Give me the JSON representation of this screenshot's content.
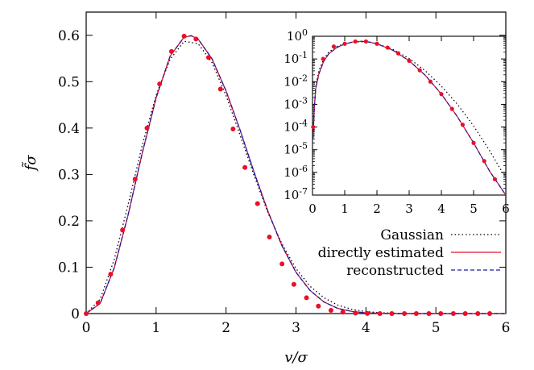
{
  "chart_data": [
    {
      "type": "line",
      "role": "main",
      "xlabel": "v/σ",
      "ylabel": "f̃σ",
      "xlim": [
        0,
        6
      ],
      "ylim": [
        0,
        0.65
      ],
      "xticks": [
        0,
        1,
        2,
        3,
        4,
        5,
        6
      ],
      "yticks": [
        0,
        0.1,
        0.2,
        0.3,
        0.4,
        0.5,
        0.6
      ],
      "x_tick_labels": [
        "0",
        "1",
        "2",
        "3",
        "4",
        "5",
        "6"
      ],
      "y_tick_labels": [
        "0",
        "0.1",
        "0.2",
        "0.3",
        "0.4",
        "0.5",
        "0.6"
      ],
      "series": [
        {
          "name": "Gaussian",
          "color": "#000000",
          "style": "dotted",
          "x": [
            0,
            0.2,
            0.4,
            0.6,
            0.8,
            1.0,
            1.2,
            1.4,
            1.6,
            1.8,
            2.0,
            2.2,
            2.4,
            2.6,
            2.8,
            3.0,
            3.2,
            3.4,
            3.6,
            3.8,
            4.0,
            4.2,
            4.4,
            4.6,
            4.8,
            5.0,
            5.4,
            6.0
          ],
          "y": [
            0,
            0.031,
            0.116,
            0.235,
            0.362,
            0.471,
            0.548,
            0.587,
            0.582,
            0.541,
            0.47,
            0.385,
            0.298,
            0.217,
            0.15,
            0.097,
            0.059,
            0.034,
            0.018,
            0.009,
            0.0043,
            0.0019,
            0.0008,
            0.0003,
            0.0001,
            5e-05,
            1e-05,
            0.0
          ]
        },
        {
          "name": "directly estimated",
          "color": "#e8102a",
          "style": "solid",
          "x": [
            0,
            0.2,
            0.4,
            0.6,
            0.8,
            1.0,
            1.2,
            1.4,
            1.5,
            1.6,
            1.8,
            2.0,
            2.2,
            2.4,
            2.6,
            2.8,
            3.0,
            3.2,
            3.4,
            3.6,
            3.8,
            4.0,
            4.2,
            4.4,
            4.6,
            4.8,
            5.0,
            5.4,
            6.0
          ],
          "y": [
            0,
            0.022,
            0.098,
            0.213,
            0.345,
            0.465,
            0.555,
            0.596,
            0.599,
            0.592,
            0.549,
            0.48,
            0.396,
            0.305,
            0.22,
            0.146,
            0.089,
            0.05,
            0.025,
            0.011,
            0.0045,
            0.0016,
            0.0005,
            0.0001,
            4e-05,
            1e-05,
            0.0,
            0.0,
            0.0
          ]
        },
        {
          "name": "reconstructed",
          "color": "#1a1aa8",
          "style": "dashed",
          "x": [
            0,
            0.2,
            0.4,
            0.6,
            0.8,
            1.0,
            1.2,
            1.4,
            1.5,
            1.6,
            1.8,
            2.0,
            2.2,
            2.4,
            2.6,
            2.8,
            3.0,
            3.2,
            3.4,
            3.6,
            3.8,
            4.0,
            4.2,
            4.4,
            4.6,
            4.8,
            5.0,
            5.4,
            6.0
          ],
          "y": [
            0,
            0.022,
            0.098,
            0.213,
            0.345,
            0.465,
            0.555,
            0.596,
            0.599,
            0.592,
            0.549,
            0.48,
            0.396,
            0.305,
            0.22,
            0.146,
            0.089,
            0.05,
            0.025,
            0.011,
            0.0045,
            0.0016,
            0.0005,
            0.0001,
            4e-05,
            1e-05,
            0.0,
            0.0,
            0.0
          ]
        }
      ],
      "markers": {
        "color": "#e8102a",
        "x": [
          0,
          0.17,
          0.35,
          0.52,
          0.7,
          0.87,
          1.05,
          1.22,
          1.4,
          1.57,
          1.75,
          1.92,
          2.1,
          2.27,
          2.45,
          2.62,
          2.8,
          2.97,
          3.15,
          3.32,
          3.5,
          3.67,
          3.85,
          4.02,
          4.2,
          4.37,
          4.55,
          4.72,
          4.9,
          5.07,
          5.25,
          5.42,
          5.6,
          5.77
        ],
        "y": [
          0,
          0.023,
          0.085,
          0.18,
          0.29,
          0.4,
          0.495,
          0.565,
          0.598,
          0.592,
          0.552,
          0.484,
          0.398,
          0.315,
          0.237,
          0.165,
          0.107,
          0.063,
          0.034,
          0.016,
          0.007,
          0.003,
          0.001,
          0.0003,
          0.0001,
          0,
          0,
          0,
          0,
          0,
          0,
          0,
          0,
          0
        ]
      },
      "legend": {
        "position": "right",
        "entries": [
          {
            "label": "Gaussian",
            "color": "#000000",
            "style": "dotted"
          },
          {
            "label": "directly estimated",
            "color": "#e8102a",
            "style": "solid"
          },
          {
            "label": "reconstructed",
            "color": "#1a1aa8",
            "style": "dashed"
          }
        ]
      }
    },
    {
      "type": "line",
      "role": "inset",
      "yscale": "log",
      "xlim": [
        0,
        6
      ],
      "ylim_exp": [
        -7,
        0
      ],
      "xticks": [
        0,
        1,
        2,
        3,
        4,
        5,
        6
      ],
      "x_tick_labels": [
        "0",
        "1",
        "2",
        "3",
        "4",
        "5",
        "6"
      ],
      "y_tick_labels": [
        {
          "mant": "10",
          "exp": "0"
        },
        {
          "mant": "10",
          "exp": "-1"
        },
        {
          "mant": "10",
          "exp": "-2"
        },
        {
          "mant": "10",
          "exp": "-3"
        },
        {
          "mant": "10",
          "exp": "-4"
        },
        {
          "mant": "10",
          "exp": "-5"
        },
        {
          "mant": "10",
          "exp": "-6"
        },
        {
          "mant": "10",
          "exp": "-7"
        }
      ],
      "series": [
        {
          "name": "Gaussian",
          "color": "#000000",
          "style": "dotted",
          "x": [
            0.02,
            0.05,
            0.1,
            0.2,
            0.35,
            0.5,
            0.75,
            1.0,
            1.25,
            1.5,
            1.75,
            2.0,
            2.5,
            3.0,
            3.5,
            4.0,
            4.5,
            5.0,
            5.5,
            6.0
          ],
          "logy": [
            -4.3,
            -3.2,
            -2.2,
            -1.5,
            -1.0,
            -0.7,
            -0.45,
            -0.33,
            -0.26,
            -0.24,
            -0.26,
            -0.33,
            -0.58,
            -0.98,
            -1.52,
            -2.2,
            -3.0,
            -3.95,
            -5.05,
            -6.25
          ]
        },
        {
          "name": "directly estimated",
          "color": "#e8102a",
          "style": "solid",
          "x": [
            0.02,
            0.05,
            0.1,
            0.2,
            0.35,
            0.5,
            0.75,
            1.0,
            1.25,
            1.5,
            1.75,
            2.0,
            2.5,
            3.0,
            3.5,
            4.0,
            4.5,
            5.0,
            5.5,
            6.0
          ],
          "logy": [
            -4.5,
            -3.3,
            -2.3,
            -1.65,
            -1.1,
            -0.78,
            -0.5,
            -0.34,
            -0.25,
            -0.22,
            -0.25,
            -0.33,
            -0.62,
            -1.08,
            -1.72,
            -2.55,
            -3.55,
            -4.7,
            -5.95,
            -7.0
          ]
        },
        {
          "name": "reconstructed",
          "color": "#1a1aa8",
          "style": "dashed",
          "x": [
            0.02,
            0.05,
            0.1,
            0.2,
            0.35,
            0.5,
            0.75,
            1.0,
            1.25,
            1.5,
            1.75,
            2.0,
            2.5,
            3.0,
            3.5,
            4.0,
            4.5,
            5.0,
            5.5,
            6.0
          ],
          "logy": [
            -4.5,
            -3.3,
            -2.3,
            -1.65,
            -1.1,
            -0.78,
            -0.5,
            -0.34,
            -0.25,
            -0.22,
            -0.25,
            -0.33,
            -0.62,
            -1.08,
            -1.72,
            -2.55,
            -3.55,
            -4.7,
            -5.95,
            -7.0
          ]
        }
      ],
      "markers": {
        "color": "#e8102a",
        "x": [
          0.02,
          0.33,
          0.66,
          1.0,
          1.33,
          1.66,
          2.0,
          2.33,
          2.66,
          3.0,
          3.33,
          3.66,
          4.0,
          4.33,
          4.66,
          5.0,
          5.33,
          5.66
        ],
        "logy": [
          -4.0,
          -1.0,
          -0.45,
          -0.33,
          -0.23,
          -0.23,
          -0.33,
          -0.5,
          -0.75,
          -1.08,
          -1.5,
          -2.0,
          -2.55,
          -3.2,
          -3.9,
          -4.7,
          -5.5,
          -6.3
        ]
      }
    }
  ]
}
